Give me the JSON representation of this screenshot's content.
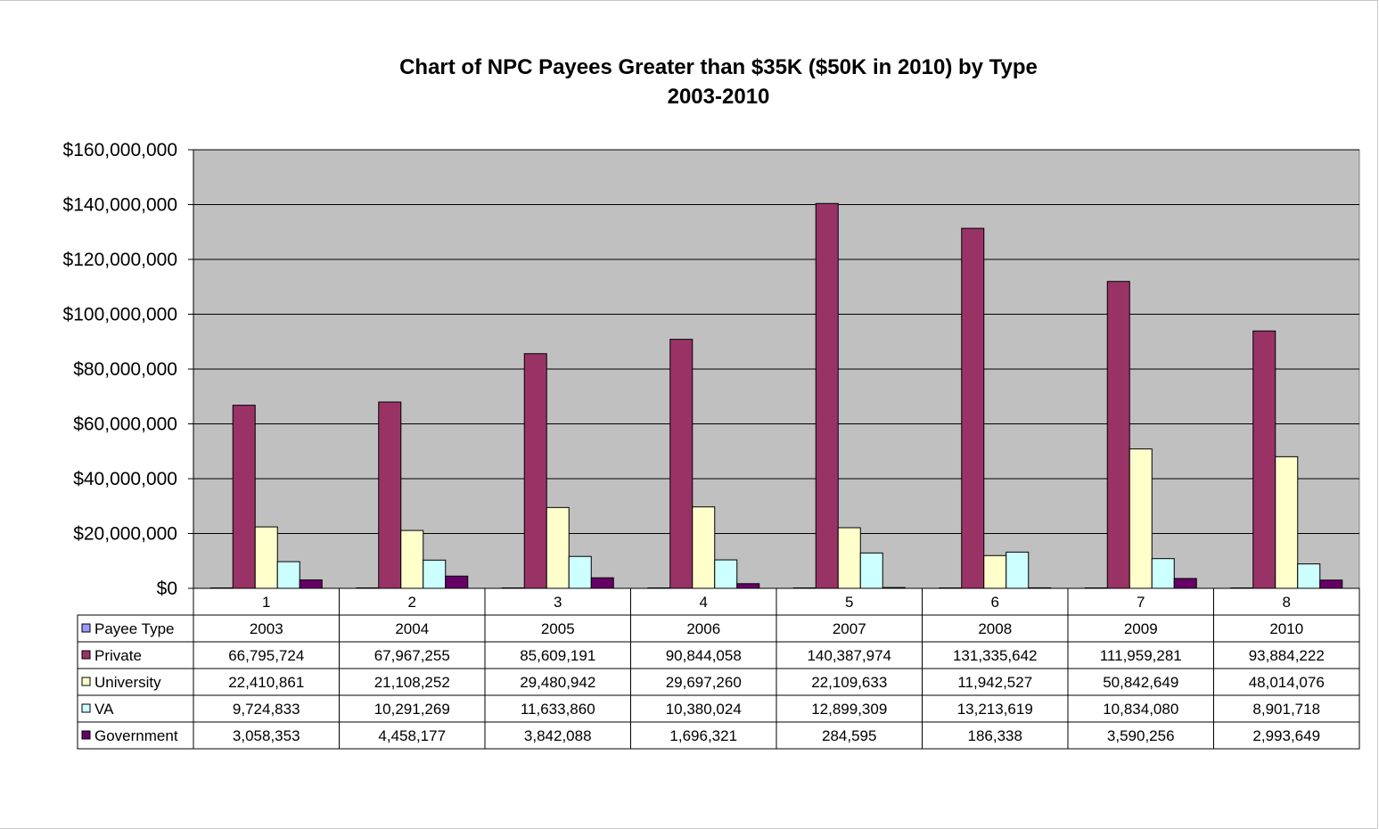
{
  "chart_data": {
    "type": "bar",
    "title": "Chart of NPC Payees Greater than $35K ($50K in 2010) by Type",
    "subtitle": "2003-2010",
    "categories": [
      "1",
      "2",
      "3",
      "4",
      "5",
      "6",
      "7",
      "8"
    ],
    "ylim": [
      0,
      160000000
    ],
    "yticks": [
      "$0",
      "$20,000,000",
      "$40,000,000",
      "$60,000,000",
      "$80,000,000",
      "$100,000,000",
      "$120,000,000",
      "$140,000,000",
      "$160,000,000"
    ],
    "grid": true,
    "plot_background": "#c0c0c0",
    "series": [
      {
        "name": "Payee Type",
        "color": "#9999ff",
        "values": [
          2003,
          2004,
          2005,
          2006,
          2007,
          2008,
          2009,
          2010
        ],
        "labels": [
          "2003",
          "2004",
          "2005",
          "2006",
          "2007",
          "2008",
          "2009",
          "2010"
        ]
      },
      {
        "name": "Private",
        "color": "#993366",
        "values": [
          66795724,
          67967255,
          85609191,
          90844058,
          140387974,
          131335642,
          111959281,
          93884222
        ],
        "labels": [
          "66,795,724",
          "67,967,255",
          "85,609,191",
          "90,844,058",
          "140,387,974",
          "131,335,642",
          "111,959,281",
          "93,884,222"
        ]
      },
      {
        "name": "University",
        "color": "#ffffcc",
        "values": [
          22410861,
          21108252,
          29480942,
          29697260,
          22109633,
          11942527,
          50842649,
          48014076
        ],
        "labels": [
          "22,410,861",
          "21,108,252",
          "29,480,942",
          "29,697,260",
          "22,109,633",
          "11,942,527",
          "50,842,649",
          "48,014,076"
        ]
      },
      {
        "name": "VA",
        "color": "#ccffff",
        "values": [
          9724833,
          10291269,
          11633860,
          10380024,
          12899309,
          13213619,
          10834080,
          8901718
        ],
        "labels": [
          "9,724,833",
          "10,291,269",
          "11,633,860",
          "10,380,024",
          "12,899,309",
          "13,213,619",
          "10,834,080",
          "8,901,718"
        ]
      },
      {
        "name": "Government",
        "color": "#660066",
        "values": [
          3058353,
          4458177,
          3842088,
          1696321,
          284595,
          186338,
          3590256,
          2993649
        ],
        "labels": [
          "3,058,353",
          "4,458,177",
          "3,842,088",
          "1,696,321",
          "284,595",
          "186,338",
          "3,590,256",
          "2,993,649"
        ]
      }
    ]
  }
}
